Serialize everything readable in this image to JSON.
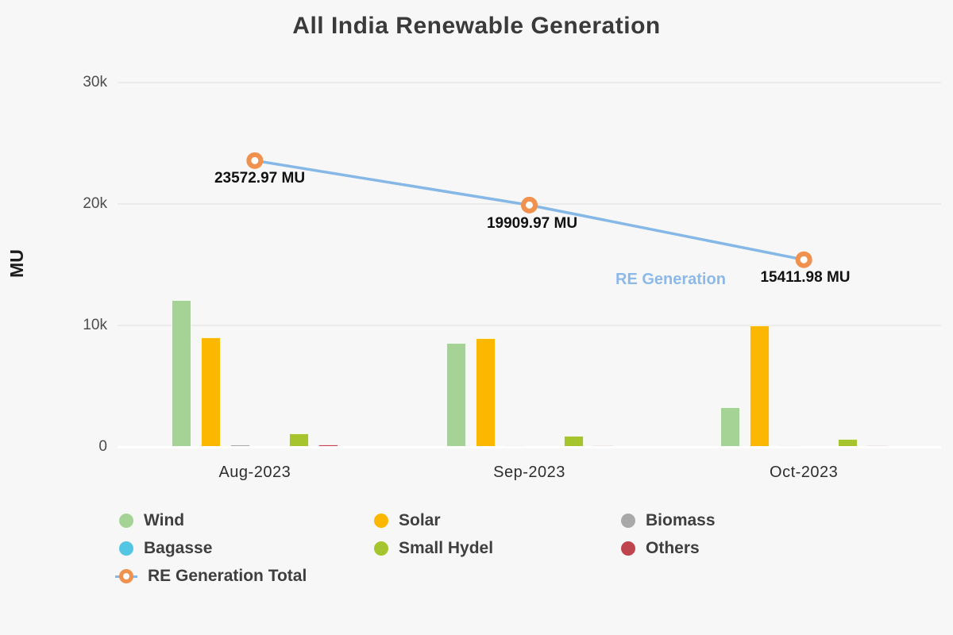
{
  "chart_data": {
    "type": "bar",
    "subtype": "grouped bars with overlaid line series",
    "title": "All India Renewable Generation",
    "ylabel": "MU",
    "xlabel": "",
    "ylim": [
      0,
      30000
    ],
    "yticks": [
      {
        "value": 30000,
        "label": "30k"
      },
      {
        "value": 20000,
        "label": "20k"
      },
      {
        "value": 10000,
        "label": "10k"
      },
      {
        "value": 0,
        "label": "0"
      }
    ],
    "grid": "horizontal",
    "legend_position": "bottom-left",
    "categories": [
      "Aug-2023",
      "Sep-2023",
      "Oct-2023"
    ],
    "bar_series": [
      {
        "name": "Wind",
        "color": "#a5d395",
        "values": [
          12100,
          8570,
          3270
        ]
      },
      {
        "name": "Solar",
        "color": "#fcb800",
        "values": [
          9030,
          8960,
          10000
        ]
      },
      {
        "name": "Biomass",
        "color": "#a9a9a9",
        "values": [
          180,
          150,
          160
        ]
      },
      {
        "name": "Bagasse",
        "color": "#53c6e4",
        "values": [
          0,
          0,
          0
        ]
      },
      {
        "name": "Small Hydel",
        "color": "#a6c42d",
        "values": [
          1100,
          930,
          680
        ]
      },
      {
        "name": "Others",
        "color": "#c0444e",
        "values": [
          170,
          160,
          120
        ]
      }
    ],
    "line_series": {
      "name": "RE Generation Total",
      "line_color": "#85b7e7",
      "marker_color": "#f0914e",
      "values": [
        23572.97,
        19909.97,
        15411.98
      ],
      "data_labels": [
        "23572.97 MU",
        "19909.97 MU",
        "15411.98 MU"
      ],
      "inline_name_label": "RE Generation"
    }
  },
  "legend": {
    "items": [
      {
        "label": "Wind",
        "type": "dot",
        "color": "#a5d395"
      },
      {
        "label": "Solar",
        "type": "dot",
        "color": "#fcb800"
      },
      {
        "label": "Biomass",
        "type": "dot",
        "color": "#a9a9a9"
      },
      {
        "label": "Bagasse",
        "type": "dot",
        "color": "#53c6e4"
      },
      {
        "label": "Small Hydel",
        "type": "dot",
        "color": "#a6c42d"
      },
      {
        "label": "Others",
        "type": "dot",
        "color": "#c0444e"
      },
      {
        "label": "RE Generation Total",
        "type": "line",
        "color": "#f0914e"
      }
    ]
  },
  "colors": {
    "background": "#f7f7f7",
    "gridline": "#ebebeb",
    "zero_line": "#ffffff",
    "title_text": "#3a3a3a",
    "tick_text": "#4d4d4d",
    "data_label_text": "#111111",
    "series_name_label_text": "#8db9e9"
  }
}
